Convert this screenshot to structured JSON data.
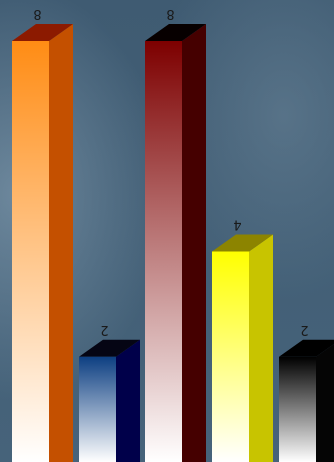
{
  "chart_data": {
    "type": "bar",
    "style": "3d-bars",
    "orientation": "rotated-180",
    "categories": [
      "",
      "",
      "",
      "",
      ""
    ],
    "values": [
      8,
      2,
      8,
      4,
      2
    ],
    "data_labels": [
      "8",
      "2",
      "8",
      "4",
      "2"
    ],
    "ylim": [
      0,
      8
    ],
    "grid": false,
    "legend": "none",
    "title": "",
    "xlabel": "",
    "ylabel": "",
    "bar_colors": [
      {
        "front_top": "#ff8c14",
        "front_bottom": "#ffffff",
        "side": "#c45000",
        "top": "#8c1a00"
      },
      {
        "front_top": "#0d3f82",
        "front_bottom": "#ffffff",
        "side": "#00004a",
        "top": "#050514"
      },
      {
        "front_top": "#7d0000",
        "front_bottom": "#ffffff",
        "side": "#450000",
        "top": "#070000"
      },
      {
        "front_top": "#ffff00",
        "front_bottom": "#ffffff",
        "side": "#c8c400",
        "top": "#8c8400"
      },
      {
        "front_top": "#000000",
        "front_bottom": "#ffffff",
        "side": "#050505",
        "top": "#000000"
      }
    ],
    "background": {
      "top": "#3f5b72",
      "bottom": "#46637a"
    }
  }
}
